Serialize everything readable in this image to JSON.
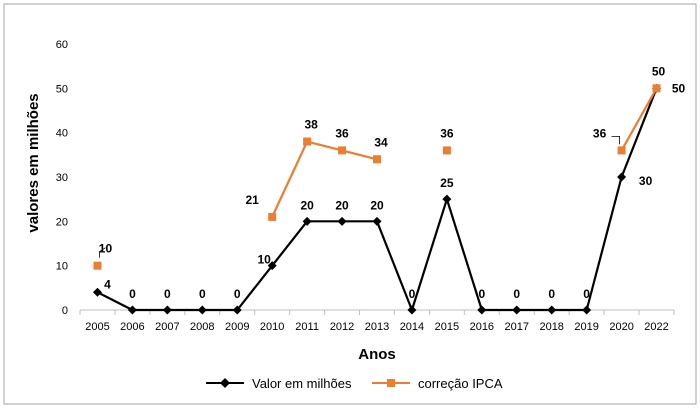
{
  "chart_data": {
    "type": "line",
    "categories": [
      "2005",
      "2006",
      "2007",
      "2008",
      "2009",
      "2010",
      "2011",
      "2012",
      "2013",
      "2014",
      "2015",
      "2016",
      "2017",
      "2018",
      "2019",
      "2020",
      "2022"
    ],
    "xlabel": "Anos",
    "ylabel": "valores em milhões",
    "ylim": [
      0,
      60
    ],
    "yticks": [
      0,
      10,
      20,
      30,
      40,
      50,
      60
    ],
    "grid": false,
    "legend_position": "bottom",
    "series": [
      {
        "name": "Valor em milhões",
        "color": "#000000",
        "marker": "diamond",
        "values": [
          4,
          0,
          0,
          0,
          0,
          10,
          20,
          20,
          20,
          0,
          25,
          0,
          0,
          0,
          0,
          30,
          50
        ],
        "labels": [
          "4",
          "0",
          "0",
          "0",
          "0",
          "10",
          "20",
          "20",
          "20",
          "0",
          "25",
          "0",
          "0",
          "0",
          "0",
          "30",
          "50"
        ]
      },
      {
        "name": "correção IPCA",
        "color": "#ED7D31",
        "marker": "square",
        "values": [
          10,
          null,
          null,
          null,
          null,
          21,
          38,
          36,
          34,
          null,
          36,
          null,
          null,
          null,
          null,
          36,
          50
        ],
        "labels": [
          "10",
          "",
          "",
          "",
          "",
          "21",
          "38",
          "36",
          "34",
          "",
          "36",
          "",
          "",
          "",
          "",
          "36",
          "50"
        ]
      }
    ]
  }
}
